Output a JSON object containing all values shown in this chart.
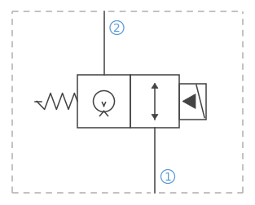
{
  "bg_color": "#ffffff",
  "border_color": "#b0b0b0",
  "symbol_color": "#444444",
  "label_color": "#5b9bd5",
  "label_1": "1",
  "label_2": "2",
  "figsize": [
    3.13,
    2.53
  ],
  "dpi": 100,
  "ox1": 15,
  "ox2": 298,
  "oy1": 15,
  "oy2": 238,
  "bx1": 95,
  "bx2": 160,
  "bx3": 220,
  "by1": 95,
  "by2": 160
}
